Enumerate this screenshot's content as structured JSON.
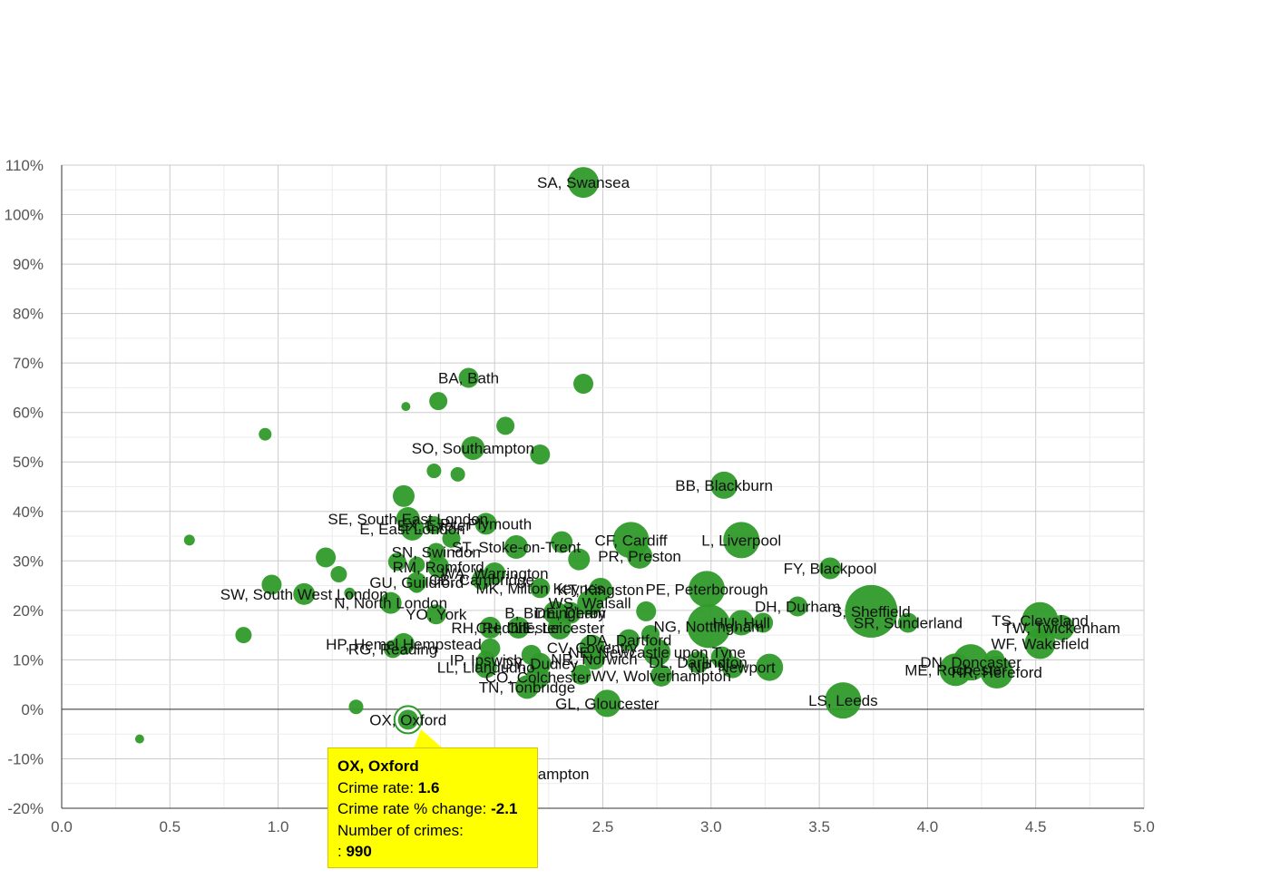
{
  "chart_data": {
    "type": "scatter",
    "title": "",
    "xlabel": "Crime rate",
    "ylabel": "Crime rate % change",
    "xlim": [
      0,
      5
    ],
    "ylim": [
      -20,
      110
    ],
    "x_ticks": [
      "0.0",
      "0.5",
      "1.0",
      "1.5",
      "2.0",
      "2.5",
      "3.0",
      "3.5",
      "4.0",
      "4.5",
      "5.0"
    ],
    "y_ticks": [
      "-20%",
      "-10%",
      "0%",
      "10%",
      "20%",
      "30%",
      "40%",
      "50%",
      "60%",
      "70%",
      "80%",
      "90%",
      "100%",
      "110%"
    ],
    "grid": true,
    "point_color": "#2f9a2a",
    "highlight_color": "#2f9a2a",
    "points": [
      {
        "label": "SA, Swansea",
        "x": 2.41,
        "y": 106.5,
        "r": 17
      },
      {
        "label": "",
        "x": 2.41,
        "y": 65.8,
        "r": 11
      },
      {
        "label": "BA, Bath",
        "x": 1.88,
        "y": 67,
        "r": 11
      },
      {
        "label": "",
        "x": 1.74,
        "y": 62.3,
        "r": 10
      },
      {
        "label": "",
        "x": 1.59,
        "y": 61.2,
        "r": 5
      },
      {
        "label": "",
        "x": 0.94,
        "y": 55.6,
        "r": 7
      },
      {
        "label": "",
        "x": 2.05,
        "y": 57.3,
        "r": 10
      },
      {
        "label": "SO, Southampton",
        "x": 1.9,
        "y": 52.8,
        "r": 13
      },
      {
        "label": "",
        "x": 2.21,
        "y": 51.5,
        "r": 11
      },
      {
        "label": "",
        "x": 1.72,
        "y": 48.2,
        "r": 8
      },
      {
        "label": "",
        "x": 1.83,
        "y": 47.5,
        "r": 8
      },
      {
        "label": "BB, Blackburn",
        "x": 3.06,
        "y": 45.3,
        "r": 15
      },
      {
        "label": "",
        "x": 1.58,
        "y": 43.1,
        "r": 12
      },
      {
        "label": "SE, South East London",
        "x": 1.6,
        "y": 38.5,
        "r": 13
      },
      {
        "label": "E, East London",
        "x": 1.62,
        "y": 36.5,
        "r": 13
      },
      {
        "label": "EX, Exeter",
        "x": 1.72,
        "y": 37.2,
        "r": 10
      },
      {
        "label": "PL, Plymouth",
        "x": 1.96,
        "y": 37.5,
        "r": 12
      },
      {
        "label": "",
        "x": 0.59,
        "y": 34.2,
        "r": 6
      },
      {
        "label": "",
        "x": 2.31,
        "y": 33.8,
        "r": 12
      },
      {
        "label": "ST, Stoke-on-Trent",
        "x": 2.1,
        "y": 32.8,
        "r": 13
      },
      {
        "label": "",
        "x": 1.8,
        "y": 34.5,
        "r": 10
      },
      {
        "label": "CF, Cardiff",
        "x": 2.63,
        "y": 34.2,
        "r": 20
      },
      {
        "label": "L, Liverpool",
        "x": 3.14,
        "y": 34.2,
        "r": 20
      },
      {
        "label": "PR, Preston",
        "x": 2.67,
        "y": 31,
        "r": 14
      },
      {
        "label": "SN, Swindon",
        "x": 1.73,
        "y": 31.8,
        "r": 10
      },
      {
        "label": "",
        "x": 1.22,
        "y": 30.7,
        "r": 11
      },
      {
        "label": "",
        "x": 2.39,
        "y": 30.3,
        "r": 12
      },
      {
        "label": "RM, Romford",
        "x": 1.74,
        "y": 28.8,
        "r": 12
      },
      {
        "label": "FY, Blackpool",
        "x": 3.55,
        "y": 28.5,
        "r": 12
      },
      {
        "label": "",
        "x": 1.55,
        "y": 29.8,
        "r": 10
      },
      {
        "label": "",
        "x": 1.64,
        "y": 29.2,
        "r": 9
      },
      {
        "label": "",
        "x": 1.28,
        "y": 27.3,
        "r": 9
      },
      {
        "label": "WA, Warrington",
        "x": 2.0,
        "y": 27.5,
        "r": 12
      },
      {
        "label": "GU, Guildford",
        "x": 1.64,
        "y": 25.7,
        "r": 11
      },
      {
        "label": "CB, Cambridge",
        "x": 1.94,
        "y": 26.2,
        "r": 11
      },
      {
        "label": "",
        "x": 1.64,
        "y": 25,
        "r": 8
      },
      {
        "label": "",
        "x": 0.97,
        "y": 25.2,
        "r": 11
      },
      {
        "label": "SW, South West London",
        "x": 1.12,
        "y": 23.3,
        "r": 12
      },
      {
        "label": "",
        "x": 1.33,
        "y": 23.5,
        "r": 6
      },
      {
        "label": "MK, Milton Keynes",
        "x": 2.21,
        "y": 24.5,
        "r": 11
      },
      {
        "label": "KT, Kingston",
        "x": 2.49,
        "y": 24.2,
        "r": 13
      },
      {
        "label": "PE, Peterborough",
        "x": 2.98,
        "y": 24.3,
        "r": 20
      },
      {
        "label": "N, North London",
        "x": 1.52,
        "y": 21.5,
        "r": 12
      },
      {
        "label": "WS, Walsall",
        "x": 2.44,
        "y": 21.5,
        "r": 14
      },
      {
        "label": "B, Birmingham",
        "x": 2.28,
        "y": 19.5,
        "r": 13
      },
      {
        "label": "DE, Derby",
        "x": 2.35,
        "y": 19.5,
        "r": 12
      },
      {
        "label": "",
        "x": 2.7,
        "y": 19.8,
        "r": 11
      },
      {
        "label": "DH, Durham",
        "x": 3.4,
        "y": 20.8,
        "r": 11
      },
      {
        "label": "S, Sheffield",
        "x": 3.74,
        "y": 19.8,
        "r": 29
      },
      {
        "label": "YO, York",
        "x": 1.73,
        "y": 19.2,
        "r": 11
      },
      {
        "label": "HU, Hull",
        "x": 3.14,
        "y": 17.5,
        "r": 14
      },
      {
        "label": "",
        "x": 3.24,
        "y": 17.5,
        "r": 11
      },
      {
        "label": "TS, Cleveland",
        "x": 4.52,
        "y": 18,
        "r": 20
      },
      {
        "label": "TW, Twickenham",
        "x": 4.62,
        "y": 16.5,
        "r": 14
      },
      {
        "label": "SR, Sunderland",
        "x": 3.91,
        "y": 17.5,
        "r": 11
      },
      {
        "label": "RH, Redhill",
        "x": 1.98,
        "y": 16.5,
        "r": 12
      },
      {
        "label": "CH, Chester",
        "x": 2.11,
        "y": 16.5,
        "r": 12
      },
      {
        "label": "LE, Leicester",
        "x": 2.3,
        "y": 16.5,
        "r": 13
      },
      {
        "label": "NG, Nottingham",
        "x": 2.99,
        "y": 16.8,
        "r": 24
      },
      {
        "label": "",
        "x": 0.84,
        "y": 15,
        "r": 9
      },
      {
        "label": "",
        "x": 2.72,
        "y": 15.2,
        "r": 10
      },
      {
        "label": "DA, Dartford",
        "x": 2.62,
        "y": 14,
        "r": 12
      },
      {
        "label": "WF, Wakefield",
        "x": 4.52,
        "y": 13.3,
        "r": 17
      },
      {
        "label": "HP, Hemel Hempstead",
        "x": 1.58,
        "y": 13.2,
        "r": 12
      },
      {
        "label": "RG, Reading",
        "x": 1.53,
        "y": 12.2,
        "r": 10
      },
      {
        "label": "",
        "x": 1.98,
        "y": 12.3,
        "r": 11
      },
      {
        "label": "CV, Coventry",
        "x": 2.45,
        "y": 12.5,
        "r": 14
      },
      {
        "label": "NE, Newcastle upon Tyne",
        "x": 2.75,
        "y": 11.5,
        "r": 15
      },
      {
        "label": "",
        "x": 3.05,
        "y": 10.5,
        "r": 12
      },
      {
        "label": "",
        "x": 2.17,
        "y": 11,
        "r": 11
      },
      {
        "label": "NR, Norwich",
        "x": 2.46,
        "y": 10.2,
        "r": 12
      },
      {
        "label": "IP, Ipswich",
        "x": 1.96,
        "y": 10,
        "r": 10
      },
      {
        "label": "DY, Dudley",
        "x": 2.21,
        "y": 9.2,
        "r": 12
      },
      {
        "label": "DL, Darlington",
        "x": 2.94,
        "y": 9.5,
        "r": 12
      },
      {
        "label": "DN, Doncaster",
        "x": 4.2,
        "y": 9.5,
        "r": 20
      },
      {
        "label": "",
        "x": 4.31,
        "y": 10,
        "r": 11
      },
      {
        "label": "NP, Newport",
        "x": 3.1,
        "y": 8.5,
        "r": 12
      },
      {
        "label": "",
        "x": 3.27,
        "y": 8.5,
        "r": 15
      },
      {
        "label": "HR, Hereford",
        "x": 4.32,
        "y": 7.5,
        "r": 18
      },
      {
        "label": "ME, Rochester",
        "x": 4.13,
        "y": 8,
        "r": 18
      },
      {
        "label": "LL, Llandudno",
        "x": 1.96,
        "y": 8.5,
        "r": 12
      },
      {
        "label": "WV, Wolverhampton",
        "x": 2.77,
        "y": 6.8,
        "r": 12
      },
      {
        "label": "CO, Colchester",
        "x": 2.2,
        "y": 6.5,
        "r": 13
      },
      {
        "label": "",
        "x": 2.4,
        "y": 7,
        "r": 11
      },
      {
        "label": "TN, Tonbridge",
        "x": 2.15,
        "y": 4.5,
        "r": 13
      },
      {
        "label": "LS, Leeds",
        "x": 3.61,
        "y": 1.8,
        "r": 20
      },
      {
        "label": "GL, Gloucester",
        "x": 2.52,
        "y": 1.2,
        "r": 15
      },
      {
        "label": "",
        "x": 1.36,
        "y": 0.5,
        "r": 8
      },
      {
        "label": "OX, Oxford",
        "x": 1.6,
        "y": -2.1,
        "r": 11,
        "highlight": true
      },
      {
        "label": "",
        "x": 0.36,
        "y": -6,
        "r": 5
      },
      {
        "label": "NN, Northampton",
        "x": 2.16,
        "y": -13,
        "r": 0
      }
    ],
    "tooltip": {
      "title": "OX, Oxford",
      "rate_label": "Crime rate: ",
      "rate_value": "1.6",
      "change_label": "Crime rate % change: ",
      "change_value": "-2.1",
      "count_label": "Number of crimes:",
      "count_prefix": ": ",
      "count_value": "990"
    }
  }
}
